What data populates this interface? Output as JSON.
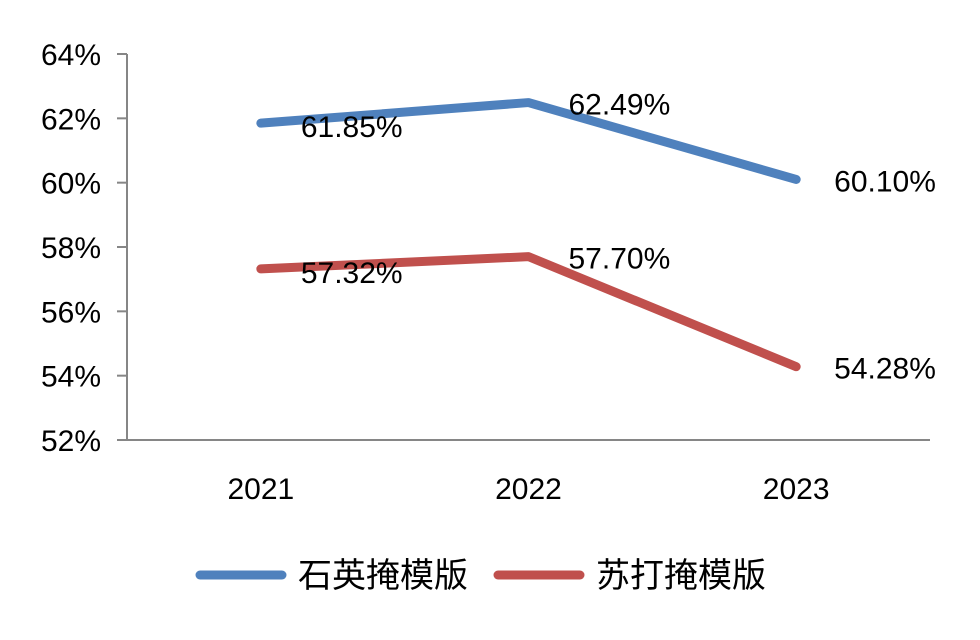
{
  "chart_data": {
    "type": "line",
    "categories": [
      "2021",
      "2022",
      "2023"
    ],
    "ylim": [
      0.52,
      0.64
    ],
    "yticks": [
      0.52,
      0.54,
      0.56,
      0.58,
      0.6,
      0.62,
      0.64
    ],
    "ytick_labels": [
      "52%",
      "54%",
      "56%",
      "58%",
      "60%",
      "62%",
      "64%"
    ],
    "grid": false,
    "legend_position": "bottom",
    "series": [
      {
        "name": "石英掩模版",
        "color": "#4F81BD",
        "values": [
          0.6185,
          0.6249,
          0.601
        ],
        "labels": [
          "61.85%",
          "62.49%",
          "60.10%"
        ]
      },
      {
        "name": "苏打掩模版",
        "color": "#C0504D",
        "values": [
          0.5732,
          0.577,
          0.5428
        ],
        "labels": [
          "57.32%",
          "57.70%",
          "54.28%"
        ]
      }
    ]
  }
}
